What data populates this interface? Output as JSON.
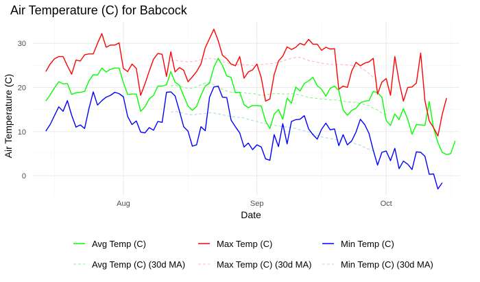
{
  "colors": {
    "avg": "#00ff00",
    "max": "#ff0000",
    "min": "#0000ff",
    "avg_ma": "#90ee90",
    "max_ma": "#ffb6c1",
    "min_ma": "#add8e6",
    "grid_major": "#ebebeb",
    "grid_minor": "#f4f4f4"
  },
  "chart_data": {
    "type": "line",
    "title": "Air Temperature (C) for Babcock",
    "xlabel": "Date",
    "ylabel": "Air Temperature (C)",
    "grid": true,
    "legend_position": "bottom",
    "xlim": [
      "2023-07-11",
      "2023-10-18"
    ],
    "ylim": [
      -4.5,
      35
    ],
    "x_ticks": [
      {
        "date": "2023-08-01",
        "label": "Aug"
      },
      {
        "date": "2023-09-01",
        "label": "Sep"
      },
      {
        "date": "2023-10-01",
        "label": "Oct"
      }
    ],
    "y_ticks": [
      0,
      10,
      20,
      30
    ],
    "x_start": "2023-07-14",
    "series": [
      {
        "name": "Avg Temp (C)",
        "style": "solid",
        "values": [
          16.9,
          18.3,
          19.9,
          21.3,
          20.8,
          20.9,
          18.4,
          18.8,
          18.9,
          19.1,
          21.5,
          22.9,
          22.8,
          24.4,
          23.5,
          24.1,
          24.4,
          24.4,
          21.1,
          18.4,
          18.5,
          18.5,
          14.6,
          15.6,
          17.4,
          18.2,
          20.3,
          20.3,
          20.6,
          23.6,
          21.2,
          20.5,
          18.1,
          15.8,
          14.8,
          15.7,
          18.2,
          20.3,
          21.0,
          24.6,
          26.6,
          25.0,
          22.6,
          22.3,
          18.8,
          18.9,
          16.1,
          15.4,
          15.9,
          15.9,
          15.8,
          12.4,
          10.7,
          13.9,
          15.0,
          12.8,
          17.6,
          16.4,
          20.1,
          19.2,
          20.9,
          21.5,
          22.3,
          20.4,
          19.6,
          18.0,
          19.8,
          20.3,
          19.3,
          14.9,
          13.7,
          14.8,
          15.3,
          16.5,
          16.9,
          17.0,
          19.1,
          18.8,
          17.8,
          12.5,
          11.4,
          14.0,
          12.7,
          15.2,
          12.8,
          9.4,
          11.6,
          11.5,
          11.4,
          16.8,
          10.8,
          7.5,
          5.3,
          4.8,
          5.0,
          7.9
        ]
      },
      {
        "name": "Max Temp (C)",
        "style": "solid",
        "values": [
          23.6,
          25.3,
          26.5,
          27.0,
          27.0,
          24.9,
          23.0,
          26.2,
          26.0,
          27.4,
          27.6,
          27.6,
          30.0,
          32.2,
          29.1,
          29.6,
          29.6,
          30.1,
          24.3,
          23.6,
          25.3,
          24.3,
          18.2,
          20.8,
          23.7,
          26.4,
          27.7,
          27.5,
          22.5,
          28.1,
          23.5,
          24.5,
          23.9,
          21.3,
          22.4,
          23.6,
          25.3,
          29.0,
          31.1,
          33.2,
          30.6,
          27.3,
          26.5,
          25.3,
          24.9,
          27.0,
          22.1,
          23.5,
          24.0,
          25.3,
          22.2,
          16.9,
          17.4,
          22.9,
          26.0,
          27.1,
          29.2,
          28.6,
          29.1,
          30.0,
          29.6,
          30.9,
          29.8,
          29.8,
          28.4,
          29.1,
          28.7,
          28.8,
          19.6,
          20.3,
          20.0,
          23.7,
          25.7,
          24.9,
          25.5,
          25.8,
          26.6,
          18.5,
          21.2,
          22.0,
          18.2,
          27.0,
          21.3,
          16.9,
          20.0,
          20.1,
          21.0,
          27.8,
          17.0,
          12.4,
          10.9,
          9.0,
          13.9,
          17.6
        ]
      },
      {
        "name": "Min Temp (C)",
        "style": "solid",
        "values": [
          10.1,
          11.6,
          13.6,
          15.6,
          14.6,
          17.0,
          13.7,
          11.0,
          11.5,
          10.7,
          15.2,
          19.0,
          16.0,
          17.0,
          17.8,
          18.2,
          18.9,
          18.6,
          17.9,
          13.4,
          11.6,
          12.4,
          9.9,
          9.7,
          10.9,
          10.3,
          12.3,
          12.1,
          18.9,
          19.0,
          18.1,
          14.7,
          11.1,
          10.1,
          6.7,
          7.0,
          11.1,
          10.2,
          17.8,
          20.1,
          20.3,
          17.8,
          17.7,
          12.6,
          11.1,
          9.7,
          6.5,
          7.4,
          5.9,
          7.0,
          6.5,
          3.8,
          3.5,
          9.3,
          6.6,
          11.8,
          7.2,
          12.3,
          12.7,
          12.8,
          13.6,
          10.6,
          9.3,
          8.3,
          10.5,
          11.9,
          10.4,
          10.6,
          6.8,
          9.3,
          7.0,
          7.9,
          9.9,
          12.8,
          11.6,
          9.6,
          5.8,
          2.4,
          5.3,
          5.6,
          3.4,
          6.2,
          1.6,
          3.3,
          2.6,
          1.4,
          5.4,
          5.3,
          4.4,
          0.3,
          0.4,
          -3.0,
          -1.6
        ]
      },
      {
        "name": "Avg Temp (C) (30d MA)",
        "style": "dashed",
        "x_start": "2023-08-12",
        "values": [
          20.4,
          20.5,
          20.3,
          20.0,
          19.8,
          19.8,
          20.1,
          20.6,
          21.0,
          21.1,
          20.6,
          20.0,
          19.6,
          19.2,
          18.9,
          18.9,
          18.9,
          18.8,
          18.6,
          18.7,
          18.4,
          18.2,
          18.3,
          18.5,
          18.6,
          18.6,
          18.5,
          18.5,
          18.6,
          18.5,
          18.3,
          18.0,
          17.7,
          17.6,
          17.5,
          17.4,
          17.3,
          17.2,
          17.2,
          17.0,
          16.9,
          16.7,
          16.7,
          16.6,
          16.4,
          16.1,
          15.9,
          15.3,
          14.9,
          14.2,
          13.9
        ]
      },
      {
        "name": "Max Temp (C) (30d MA)",
        "style": "dashed",
        "x_start": "2023-08-12",
        "values": [
          26.1,
          26.2,
          26.0,
          25.9,
          25.8,
          25.9,
          26.0,
          26.3,
          26.5,
          26.6,
          26.5,
          26.2,
          25.8,
          25.6,
          25.3,
          25.2,
          25.2,
          25.1,
          25.1,
          25.0,
          25.1,
          25.2,
          25.3,
          25.4,
          25.5,
          25.7,
          26.0,
          26.3,
          26.6,
          26.8,
          26.8,
          26.5,
          26.1,
          25.9,
          25.7,
          25.5,
          25.4,
          25.2,
          25.2,
          25.2,
          25.2,
          25.1,
          25.0,
          24.8,
          24.5,
          23.9,
          23.2,
          22.3,
          21.6
        ]
      },
      {
        "name": "Min Temp (C) (30d MA)",
        "style": "dashed",
        "x_start": "2023-08-12",
        "values": [
          14.4,
          14.6,
          14.4,
          14.1,
          13.9,
          13.8,
          13.9,
          14.0,
          14.1,
          14.3,
          14.2,
          14.0,
          13.8,
          13.6,
          13.4,
          13.3,
          13.2,
          13.1,
          12.8,
          12.5,
          12.3,
          12.0,
          11.8,
          11.6,
          11.4,
          11.3,
          11.1,
          11.0,
          10.9,
          10.7,
          10.4,
          10.2,
          9.9,
          9.5,
          9.1,
          8.8,
          8.6,
          8.4,
          8.2,
          8.1,
          7.9,
          7.7,
          7.5,
          7.2,
          6.9,
          6.4,
          6.0,
          5.6
        ]
      }
    ]
  }
}
